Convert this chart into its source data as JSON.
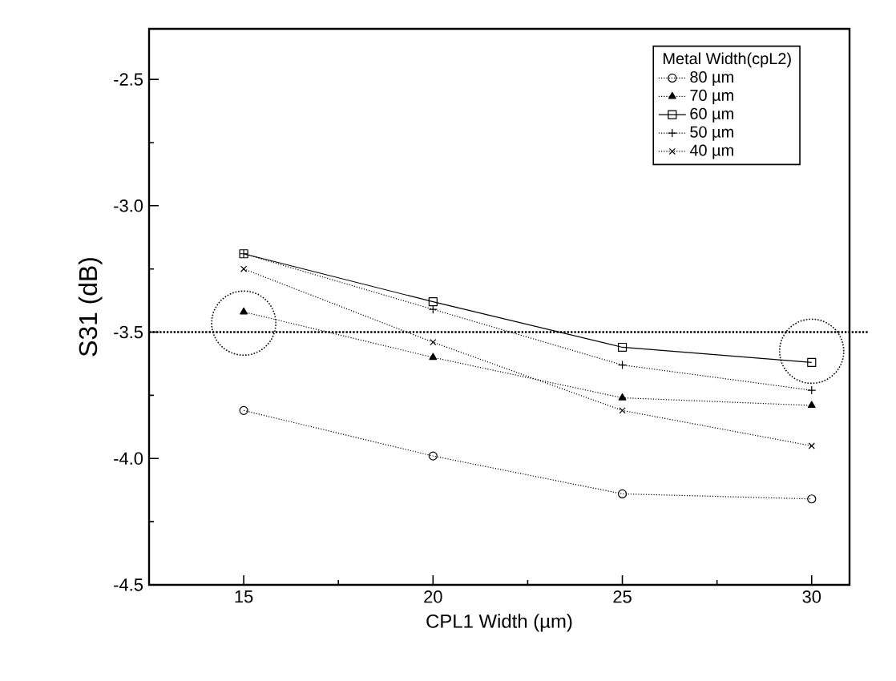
{
  "chart_data": {
    "type": "line",
    "xlabel": "CPL1 Width (µm)",
    "ylabel": "S31 (dB)",
    "legend_title": "Metal Width(cpL2)",
    "x": [
      15,
      20,
      25,
      30
    ],
    "series": [
      {
        "name": "80 µm",
        "color": "#000000",
        "marker": "circle",
        "line_style": "dotted",
        "values": [
          -3.81,
          -3.99,
          -4.14,
          -4.16
        ]
      },
      {
        "name": "70 µm",
        "color": "#000000",
        "marker": "triangle",
        "line_style": "dotted",
        "values": [
          -3.42,
          -3.6,
          -3.76,
          -3.79
        ]
      },
      {
        "name": "60 µm",
        "color": "#000000",
        "marker": "square",
        "line_style": "solid",
        "values": [
          -3.19,
          -3.38,
          -3.56,
          -3.62
        ]
      },
      {
        "name": "50 µm",
        "color": "#000000",
        "marker": "cross",
        "line_style": "dotted",
        "values": [
          -3.19,
          -3.41,
          -3.63,
          -3.73
        ]
      },
      {
        "name": "40 µm",
        "color": "#000000",
        "marker": "x",
        "line_style": "dotted",
        "values": [
          -3.25,
          -3.54,
          -3.81,
          -3.95
        ]
      }
    ],
    "xlim": [
      12.5,
      31
    ],
    "ylim": [
      -4.5,
      -2.3
    ],
    "xticks": [
      15,
      20,
      25,
      30
    ],
    "yticks": [
      -4.5,
      {
        "value": -4,
        "label": "-4.0"
      },
      -3.5,
      {
        "value": -3,
        "label": "-3.0"
      },
      -2.5
    ],
    "ref_lines": [
      {
        "axis": "y",
        "value": -3.5,
        "line_style": "dotted"
      }
    ],
    "legend": "top right",
    "grid": false
  }
}
